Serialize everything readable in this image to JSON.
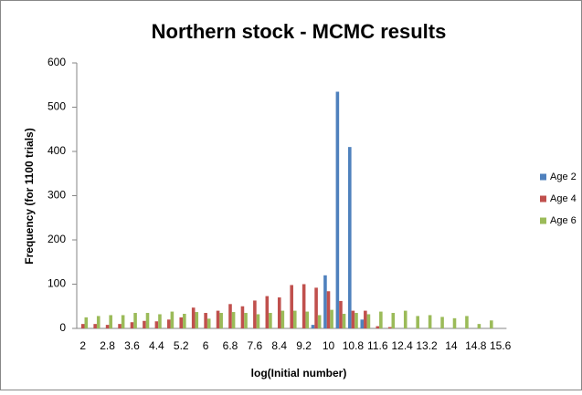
{
  "chart_data": {
    "type": "bar",
    "title": "Northern stock - MCMC results",
    "x_label": "log(Initial number)",
    "y_label": "Frequency  (for 1100 trials)",
    "categories": [
      "2",
      null,
      "2.8",
      null,
      "3.6",
      null,
      "4.4",
      null,
      "5.2",
      null,
      "6",
      null,
      "6.8",
      null,
      "7.6",
      null,
      "8.4",
      null,
      "9.2",
      null,
      "10",
      null,
      "10.8",
      null,
      "11.6",
      null,
      "12.4",
      null,
      "13.2",
      null,
      "14",
      null,
      "14.8",
      null,
      "15.6"
    ],
    "series": [
      {
        "name": "Age 2",
        "color": "#4f81bd",
        "values": [
          0,
          0,
          0,
          0,
          0,
          0,
          0,
          0,
          0,
          0,
          0,
          0,
          0,
          0,
          0,
          0,
          0,
          0,
          0,
          8,
          120,
          535,
          410,
          20,
          0,
          0,
          0,
          0,
          0,
          0,
          0,
          0,
          0,
          0,
          0
        ]
      },
      {
        "name": "Age 4",
        "color": "#c0504d",
        "values": [
          10,
          10,
          8,
          10,
          14,
          17,
          16,
          20,
          25,
          47,
          35,
          40,
          55,
          50,
          63,
          73,
          70,
          98,
          100,
          92,
          84,
          62,
          40,
          40,
          5,
          3,
          0,
          0,
          0,
          0,
          0,
          0,
          0,
          0,
          0
        ]
      },
      {
        "name": "Age 6",
        "color": "#9bbb59",
        "values": [
          25,
          28,
          30,
          30,
          35,
          35,
          32,
          38,
          33,
          37,
          22,
          35,
          37,
          35,
          32,
          35,
          40,
          40,
          38,
          30,
          42,
          33,
          35,
          32,
          38,
          35,
          40,
          28,
          30,
          26,
          23,
          28,
          10,
          18,
          0
        ]
      }
    ],
    "ylim": [
      0,
      600
    ],
    "yticks": [
      0,
      100,
      200,
      300,
      400,
      500,
      600
    ],
    "grid": false,
    "legend": "right"
  }
}
